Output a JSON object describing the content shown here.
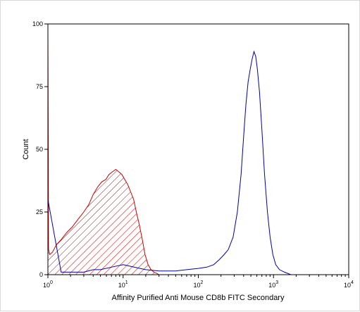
{
  "chart_data": {
    "type": "area",
    "title": "",
    "xlabel": "Affinity Purified Anti Mouse CD8b FITC Secondary",
    "ylabel": "Count",
    "xscale": "log",
    "xlim": [
      1,
      10000
    ],
    "ylim": [
      0,
      100
    ],
    "xticks": [
      1,
      10,
      100,
      1000,
      10000
    ],
    "xtick_labels": [
      {
        "base": "10",
        "exp": "0"
      },
      {
        "base": "10",
        "exp": "1"
      },
      {
        "base": "10",
        "exp": "2"
      },
      {
        "base": "10",
        "exp": "3"
      },
      {
        "base": "10",
        "exp": "4"
      }
    ],
    "yticks": [
      0,
      25,
      50,
      75,
      100
    ],
    "ytick_labels": [
      "0",
      "25",
      "50",
      "75",
      "100"
    ],
    "grid": false,
    "legend": "none",
    "series": [
      {
        "color": "#cc0000",
        "fill": "hatched",
        "x": [
          1.0,
          1.02,
          1.06,
          1.15,
          1.3,
          1.5,
          1.8,
          2.1,
          2.5,
          3.0,
          3.5,
          4.0,
          4.6,
          5.2,
          5.9,
          6.5,
          7.2,
          8.0,
          8.8,
          9.6,
          10.5,
          11.5,
          12.6,
          13.8,
          15.0,
          16.4,
          18.0,
          19.6,
          21.5,
          23.5,
          25.7,
          28.0,
          30.0
        ],
        "y": [
          98,
          10,
          8,
          9,
          12,
          14,
          17,
          19,
          22,
          25,
          28,
          32,
          35,
          37,
          38,
          40,
          41,
          42,
          41,
          40,
          38,
          36,
          33,
          30,
          25,
          20,
          14,
          8,
          4,
          2,
          1,
          0.5,
          0
        ]
      },
      {
        "color": "#0000aa",
        "fill": "none",
        "x": [
          1.0,
          1.5,
          2.0,
          3.0,
          4.0,
          5.0,
          7.0,
          10.0,
          14.0,
          20.0,
          30.0,
          50.0,
          70.0,
          100.0,
          130.0,
          160.0,
          190.0,
          220.0,
          250.0,
          290.0,
          330.0,
          370.0,
          400.0,
          430.0,
          460.0,
          490.0,
          520.0,
          550.0,
          580.0,
          610.0,
          650.0,
          700.0,
          760.0,
          830.0,
          900.0,
          980.0,
          1070.0,
          1200.0,
          1400.0,
          1700.0
        ],
        "y": [
          30,
          1,
          1,
          1,
          2,
          2,
          3,
          4,
          3,
          2,
          1.5,
          1.5,
          2,
          2.5,
          3,
          4,
          6,
          8,
          10,
          15,
          25,
          40,
          55,
          68,
          77,
          82,
          86,
          89,
          87,
          82,
          73,
          58,
          40,
          25,
          15,
          8,
          4,
          2,
          1,
          0
        ]
      }
    ]
  }
}
